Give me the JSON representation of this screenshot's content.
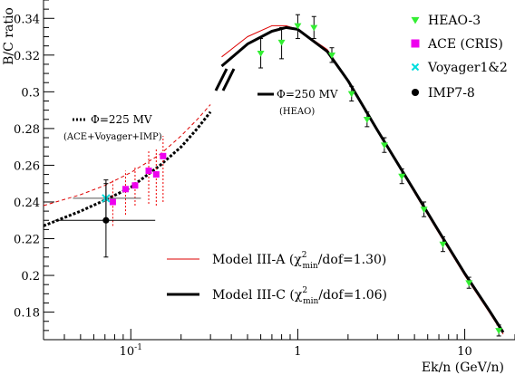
{
  "chart_data": {
    "type": "line",
    "xlabel": "Ek/n (GeV/n)",
    "ylabel": "B/C ratio",
    "xscale": "log",
    "xlim": [
      0.03,
      20
    ],
    "ylim": [
      0.165,
      0.35
    ],
    "grid": false,
    "x_tick_labels": [
      {
        "value": 0.1,
        "base": "10",
        "exp": "-1"
      },
      {
        "value": 1,
        "base": "1",
        "exp": ""
      },
      {
        "value": 10,
        "base": "10",
        "exp": ""
      }
    ],
    "y_ticks": [
      0.18,
      0.2,
      0.22,
      0.24,
      0.26,
      0.28,
      0.3,
      0.32,
      0.34
    ],
    "y_tick_labels": [
      "0.18",
      "0.2",
      "0.22",
      "0.24",
      "0.26",
      "0.28",
      "0.3",
      "0.32",
      "0.34"
    ],
    "legend_position": "top-right",
    "legend": [
      {
        "label": "HEAO-3",
        "marker": "triangle-down",
        "color": "#33ee33"
      },
      {
        "label": "ACE (CRIS)",
        "marker": "square",
        "color": "#ee00ee"
      },
      {
        "label": "Voyager1&2",
        "marker": "x",
        "color": "#00dddd"
      },
      {
        "label": "IMP7-8",
        "marker": "circle",
        "color": "#000000"
      }
    ],
    "model_legend": [
      {
        "label": "Model III-A (χ",
        "sub": "min",
        "sup": "2",
        "tail": "/dof=1.30)",
        "color": "#dd0000",
        "width": 1
      },
      {
        "label": "Model III-C (χ",
        "sub": "min",
        "sup": "2",
        "tail": "/dof=1.06)",
        "color": "#000000",
        "width": 3
      }
    ],
    "annotations": {
      "phi_low": "Φ=225 MV",
      "phi_low_sub": "(ACE+Voyager+IMP)",
      "phi_high": "Φ=250 MV",
      "phi_high_sub": "(HEAO)"
    },
    "series": [
      {
        "marker": "triangle-down",
        "color": "#33ee33",
        "points": [
          {
            "x": 0.6,
            "y": 0.321,
            "ylo": 0.313,
            "yhi": 0.329
          },
          {
            "x": 0.8,
            "y": 0.327,
            "ylo": 0.318,
            "yhi": 0.335
          },
          {
            "x": 1.0,
            "y": 0.336,
            "ylo": 0.329,
            "yhi": 0.342
          },
          {
            "x": 1.25,
            "y": 0.335,
            "ylo": 0.329,
            "yhi": 0.341
          },
          {
            "x": 1.6,
            "y": 0.32,
            "ylo": 0.316,
            "yhi": 0.324
          },
          {
            "x": 2.1,
            "y": 0.299,
            "ylo": 0.295,
            "yhi": 0.303
          },
          {
            "x": 2.6,
            "y": 0.285,
            "ylo": 0.281,
            "yhi": 0.289
          },
          {
            "x": 3.3,
            "y": 0.271,
            "ylo": 0.267,
            "yhi": 0.275
          },
          {
            "x": 4.2,
            "y": 0.254,
            "ylo": 0.25,
            "yhi": 0.258
          },
          {
            "x": 5.7,
            "y": 0.236,
            "ylo": 0.232,
            "yhi": 0.24
          },
          {
            "x": 7.4,
            "y": 0.217,
            "ylo": 0.213,
            "yhi": 0.221
          },
          {
            "x": 10.6,
            "y": 0.196,
            "ylo": 0.193,
            "yhi": 0.199
          },
          {
            "x": 16.0,
            "y": 0.17,
            "ylo": 0.167,
            "yhi": 0.173
          }
        ]
      },
      {
        "marker": "square",
        "color": "#ee00ee",
        "points": [
          {
            "x": 0.078,
            "y": 0.24,
            "ylo": 0.227,
            "yhi": 0.252
          },
          {
            "x": 0.093,
            "y": 0.247,
            "ylo": 0.233,
            "yhi": 0.257
          },
          {
            "x": 0.106,
            "y": 0.249,
            "ylo": 0.238,
            "yhi": 0.259
          },
          {
            "x": 0.128,
            "y": 0.257,
            "ylo": 0.239,
            "yhi": 0.268
          },
          {
            "x": 0.142,
            "y": 0.255,
            "ylo": 0.238,
            "yhi": 0.269
          },
          {
            "x": 0.156,
            "y": 0.265,
            "ylo": 0.24,
            "yhi": 0.276
          }
        ]
      },
      {
        "marker": "x",
        "color": "#00dddd",
        "points": [
          {
            "x": 0.071,
            "y": 0.242,
            "ylo": 0.229,
            "yhi": 0.252,
            "xlo": 0.045,
            "xhi": 0.115
          }
        ]
      },
      {
        "marker": "circle",
        "color": "#000000",
        "points": [
          {
            "x": 0.071,
            "y": 0.23,
            "ylo": 0.21,
            "yhi": 0.25,
            "xlo": 0.035,
            "xhi": 0.14
          }
        ]
      }
    ],
    "curves": [
      {
        "model": "III-A",
        "phi": "low",
        "style": "dashed",
        "color": "#dd0000",
        "width": 1,
        "points": [
          [
            0.03,
            0.238
          ],
          [
            0.05,
            0.244
          ],
          [
            0.07,
            0.249
          ],
          [
            0.1,
            0.256
          ],
          [
            0.15,
            0.266
          ],
          [
            0.2,
            0.276
          ],
          [
            0.25,
            0.285
          ],
          [
            0.3,
            0.293
          ]
        ]
      },
      {
        "model": "III-C",
        "phi": "low",
        "style": "dotted",
        "color": "#000000",
        "width": 3,
        "points": [
          [
            0.03,
            0.227
          ],
          [
            0.05,
            0.235
          ],
          [
            0.07,
            0.241
          ],
          [
            0.1,
            0.248
          ],
          [
            0.15,
            0.26
          ],
          [
            0.2,
            0.27
          ],
          [
            0.25,
            0.28
          ],
          [
            0.3,
            0.289
          ]
        ]
      },
      {
        "model": "III-A",
        "phi": "high",
        "style": "solid",
        "color": "#dd0000",
        "width": 1,
        "points": [
          [
            0.35,
            0.319
          ],
          [
            0.5,
            0.33
          ],
          [
            0.7,
            0.336
          ],
          [
            0.85,
            0.336
          ],
          [
            1.0,
            0.334
          ],
          [
            1.5,
            0.323
          ],
          [
            2.0,
            0.306
          ],
          [
            3.0,
            0.279
          ],
          [
            5.0,
            0.245
          ],
          [
            7.0,
            0.223
          ],
          [
            10.0,
            0.2
          ],
          [
            14.0,
            0.18
          ],
          [
            17.0,
            0.168
          ]
        ]
      },
      {
        "model": "III-C",
        "phi": "high",
        "style": "solid",
        "color": "#000000",
        "width": 3,
        "points": [
          [
            0.35,
            0.314
          ],
          [
            0.5,
            0.326
          ],
          [
            0.7,
            0.333
          ],
          [
            0.85,
            0.335
          ],
          [
            1.0,
            0.334
          ],
          [
            1.5,
            0.322
          ],
          [
            2.0,
            0.306
          ],
          [
            3.0,
            0.279
          ],
          [
            5.0,
            0.246
          ],
          [
            7.0,
            0.224
          ],
          [
            10.0,
            0.201
          ],
          [
            14.0,
            0.181
          ],
          [
            17.0,
            0.169
          ]
        ]
      }
    ]
  }
}
